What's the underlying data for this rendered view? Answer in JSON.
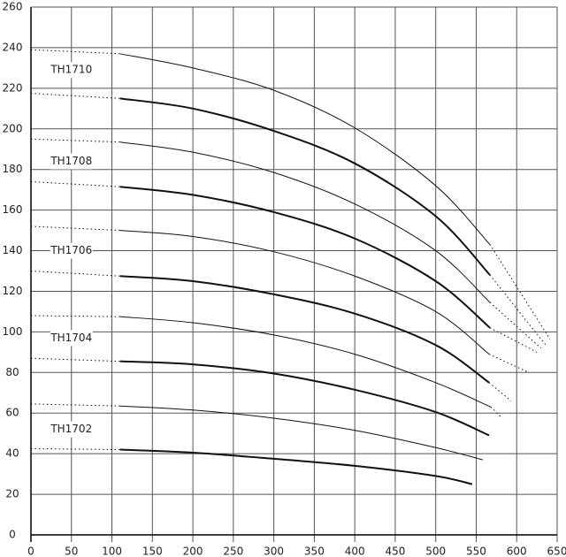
{
  "chart_data": {
    "type": "line",
    "xlim": [
      0,
      650
    ],
    "xticks": [
      0,
      50,
      100,
      150,
      200,
      250,
      300,
      350,
      400,
      450,
      500,
      550,
      600,
      650
    ],
    "ylim": [
      0,
      260
    ],
    "yticks": [
      0,
      20,
      40,
      60,
      80,
      100,
      120,
      140,
      160,
      180,
      200,
      220,
      240,
      260
    ],
    "grid": true,
    "annotations": [
      {
        "text": "TH1710",
        "x": 50,
        "y": 229
      },
      {
        "text": "TH1708",
        "x": 50,
        "y": 184
      },
      {
        "text": "TH1706",
        "x": 50,
        "y": 140
      },
      {
        "text": "TH1704",
        "x": 50,
        "y": 97
      },
      {
        "text": "TH1702",
        "x": 50,
        "y": 52
      }
    ],
    "series": [
      {
        "color": "#111",
        "width": 2,
        "style": "solid",
        "x": [
          110,
          200,
          300,
          400,
          500,
          545
        ],
        "values": [
          42,
          40.5,
          37.5,
          34,
          29,
          25
        ]
      },
      {
        "color": "#111",
        "width": 1,
        "style": "dotted",
        "x": [
          0,
          110
        ],
        "values": [
          42.5,
          42
        ]
      },
      {
        "color": "#111",
        "width": 1,
        "style": "solid",
        "x": [
          110,
          200,
          300,
          400,
          500,
          558
        ],
        "values": [
          63.5,
          61.5,
          57.5,
          51.5,
          43,
          37
        ]
      },
      {
        "color": "#111",
        "width": 1,
        "style": "dotted",
        "x": [
          0,
          110
        ],
        "values": [
          64.5,
          63.5
        ]
      },
      {
        "color": "#111",
        "width": 2,
        "style": "solid",
        "x": [
          110,
          200,
          300,
          400,
          500,
          566
        ],
        "values": [
          85.5,
          84,
          79.5,
          71.5,
          60.5,
          49
        ]
      },
      {
        "color": "#111",
        "width": 1,
        "style": "dotted",
        "x": [
          0,
          110
        ],
        "values": [
          87,
          85.5
        ]
      },
      {
        "color": "#111",
        "width": 1,
        "style": "solid",
        "x": [
          110,
          200,
          300,
          400,
          500,
          568
        ],
        "values": [
          107.5,
          104.5,
          98.5,
          89,
          75,
          63
        ]
      },
      {
        "color": "#111",
        "width": 1,
        "style": "dotted",
        "x": [
          0,
          110
        ],
        "values": [
          108,
          107.5
        ]
      },
      {
        "color": "#111",
        "width": 1,
        "style": "dotted",
        "x": [
          568,
          581
        ],
        "values": [
          63,
          58
        ]
      },
      {
        "color": "#111",
        "width": 2,
        "style": "solid",
        "x": [
          110,
          200,
          300,
          400,
          500,
          566
        ],
        "values": [
          127.5,
          125,
          118.5,
          109,
          93.5,
          75
        ]
      },
      {
        "color": "#111",
        "width": 1,
        "style": "dotted",
        "x": [
          0,
          110
        ],
        "values": [
          130,
          127.5
        ]
      },
      {
        "color": "#111",
        "width": 1,
        "style": "dotted",
        "x": [
          566,
          593
        ],
        "values": [
          75,
          66
        ]
      },
      {
        "color": "#111",
        "width": 1,
        "style": "solid",
        "x": [
          110,
          200,
          300,
          400,
          500,
          566
        ],
        "values": [
          150,
          147,
          139.5,
          127.5,
          110,
          89
        ]
      },
      {
        "color": "#111",
        "width": 1,
        "style": "dotted",
        "x": [
          0,
          110
        ],
        "values": [
          152,
          150
        ]
      },
      {
        "color": "#111",
        "width": 1,
        "style": "dotted",
        "x": [
          566,
          615
        ],
        "values": [
          89,
          80
        ]
      },
      {
        "color": "#111",
        "width": 2,
        "style": "solid",
        "x": [
          110,
          200,
          300,
          400,
          500,
          567
        ],
        "values": [
          171.5,
          167.5,
          159,
          146,
          125,
          102
        ]
      },
      {
        "color": "#111",
        "width": 1,
        "style": "dotted",
        "x": [
          0,
          110
        ],
        "values": [
          174,
          171.5
        ]
      },
      {
        "color": "#111",
        "width": 1,
        "style": "dotted",
        "x": [
          567,
          625
        ],
        "values": [
          102,
          90
        ]
      },
      {
        "color": "#111",
        "width": 1,
        "style": "solid",
        "x": [
          110,
          200,
          300,
          400,
          500,
          567
        ],
        "values": [
          193.5,
          188.5,
          178.5,
          163,
          140,
          114.5
        ]
      },
      {
        "color": "#111",
        "width": 1,
        "style": "dotted",
        "x": [
          0,
          110
        ],
        "values": [
          195,
          193.5
        ]
      },
      {
        "color": "#111",
        "width": 1,
        "style": "dotted",
        "x": [
          567,
          630
        ],
        "values": [
          114.5,
          92
        ]
      },
      {
        "color": "#111",
        "width": 2,
        "style": "solid",
        "x": [
          110,
          200,
          300,
          400,
          500,
          567
        ],
        "values": [
          215,
          210,
          199,
          183,
          157,
          128
        ]
      },
      {
        "color": "#111",
        "width": 1,
        "style": "dotted",
        "x": [
          0,
          110
        ],
        "values": [
          217.5,
          215
        ]
      },
      {
        "color": "#111",
        "width": 1,
        "style": "dotted",
        "x": [
          567,
          636
        ],
        "values": [
          128,
          93.5
        ]
      },
      {
        "color": "#111",
        "width": 1,
        "style": "solid",
        "x": [
          110,
          200,
          300,
          400,
          500,
          567
        ],
        "values": [
          237,
          230,
          219,
          200.5,
          172,
          143
        ]
      },
      {
        "color": "#111",
        "width": 1,
        "style": "dotted",
        "x": [
          0,
          110
        ],
        "values": [
          239,
          237
        ]
      },
      {
        "color": "#111",
        "width": 1,
        "style": "dotted",
        "x": [
          567,
          641
        ],
        "values": [
          143,
          96.5
        ]
      }
    ]
  }
}
